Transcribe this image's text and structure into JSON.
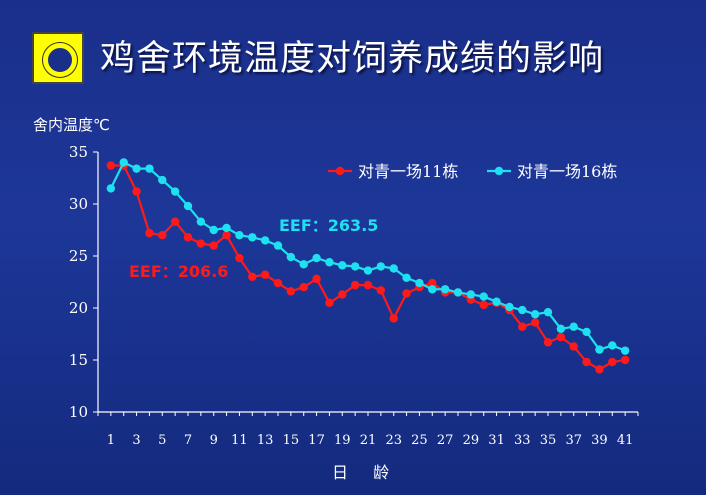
{
  "slide": {
    "title": "鸡舍环境温度对饲养成绩的影响",
    "title_icon": "yellow-square-ring-icon"
  },
  "chart_data": {
    "type": "line",
    "ylabel": "舍内温度℃",
    "xlabel": "日 龄",
    "x": [
      1,
      2,
      3,
      4,
      5,
      6,
      7,
      8,
      9,
      10,
      11,
      12,
      13,
      14,
      15,
      16,
      17,
      18,
      19,
      20,
      21,
      22,
      23,
      24,
      25,
      26,
      27,
      28,
      29,
      30,
      31,
      32,
      33,
      34,
      35,
      36,
      37,
      38,
      39,
      40,
      41
    ],
    "xticks": [
      1,
      3,
      5,
      7,
      9,
      11,
      13,
      15,
      17,
      19,
      21,
      23,
      25,
      27,
      29,
      31,
      33,
      35,
      37,
      39,
      41
    ],
    "yticks": [
      10,
      15,
      20,
      25,
      30,
      35
    ],
    "xlim": [
      0,
      42
    ],
    "ylim": [
      10,
      35
    ],
    "legend_position": "top-right",
    "series": [
      {
        "name": "对青一场11栋",
        "color": "#ff1a1a",
        "values": [
          33.7,
          33.7,
          31.2,
          27.2,
          27.0,
          28.3,
          26.8,
          26.2,
          26.0,
          27.0,
          24.8,
          23.0,
          23.2,
          22.4,
          21.6,
          22.0,
          22.8,
          20.5,
          21.3,
          22.2,
          22.2,
          21.7,
          19.0,
          21.4,
          22.0,
          22.4,
          21.5,
          21.5,
          20.8,
          20.3,
          20.5,
          19.8,
          18.2,
          18.6,
          16.7,
          17.2,
          16.3,
          14.8,
          14.1,
          14.8,
          15.0
        ],
        "annotation": "EEF：206.6"
      },
      {
        "name": "对青一场16栋",
        "color": "#1ee0f0",
        "values": [
          31.5,
          34.0,
          33.4,
          33.4,
          32.3,
          31.2,
          29.8,
          28.3,
          27.5,
          27.7,
          27.0,
          26.8,
          26.5,
          26.0,
          24.9,
          24.2,
          24.8,
          24.4,
          24.1,
          24.0,
          23.6,
          24.0,
          23.8,
          22.9,
          22.4,
          21.8,
          21.8,
          21.5,
          21.3,
          21.1,
          20.6,
          20.1,
          19.8,
          19.4,
          19.6,
          18.0,
          18.2,
          17.7,
          16.0,
          16.4,
          15.9
        ],
        "annotation": "EEF：263.5"
      }
    ]
  }
}
